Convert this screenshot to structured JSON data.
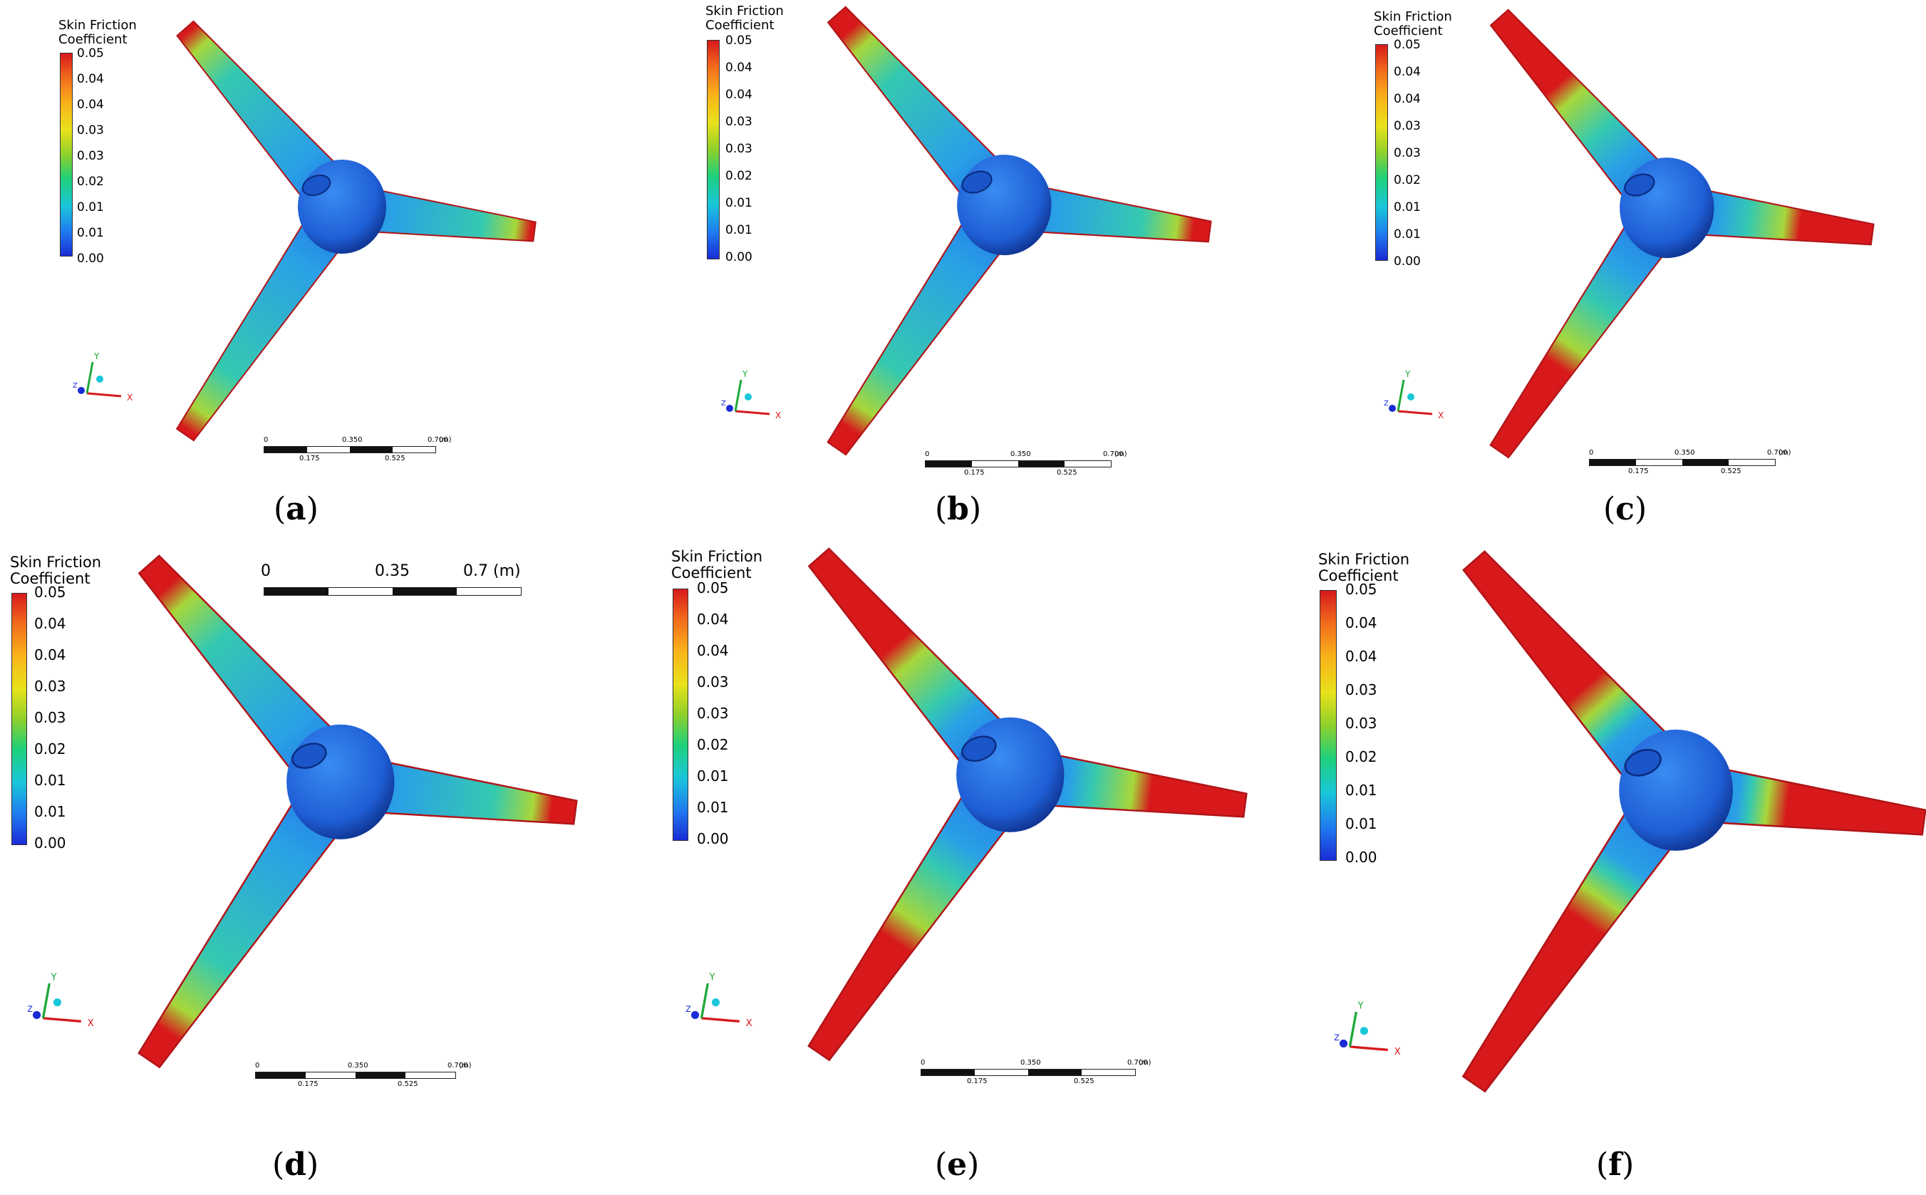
{
  "legend": {
    "title_line1": "Skin Friction",
    "title_line2": "Coefficient",
    "ticks": [
      "0.05",
      "0.04",
      "0.04",
      "0.03",
      "0.03",
      "0.02",
      "0.01",
      "0.01",
      "0.00"
    ],
    "colors": [
      "#d7191c",
      "#f9b41a",
      "#e8e21b",
      "#8ed02a",
      "#1fd07a",
      "#19c7d9",
      "#1f7bf0",
      "#1a2bd6"
    ]
  },
  "scale_small": {
    "top": [
      "0",
      "0.350",
      "0.700",
      "(m)"
    ],
    "bottom": [
      "0.175",
      "0.525"
    ]
  },
  "scale_large": {
    "top": [
      "0",
      "0.35",
      "0.7 (m)"
    ]
  },
  "axes": {
    "x": "X",
    "y": "Y",
    "z": "Z"
  },
  "panels": [
    {
      "id": "a",
      "label": "a",
      "red_tip_fraction": 0.02
    },
    {
      "id": "b",
      "label": "b",
      "red_tip_fraction": 0.08
    },
    {
      "id": "c",
      "label": "c",
      "red_tip_fraction": 0.35
    },
    {
      "id": "d",
      "label": "d",
      "red_tip_fraction": 0.1
    },
    {
      "id": "e",
      "label": "e",
      "red_tip_fraction": 0.4
    },
    {
      "id": "f",
      "label": "f",
      "red_tip_fraction": 0.55
    }
  ]
}
